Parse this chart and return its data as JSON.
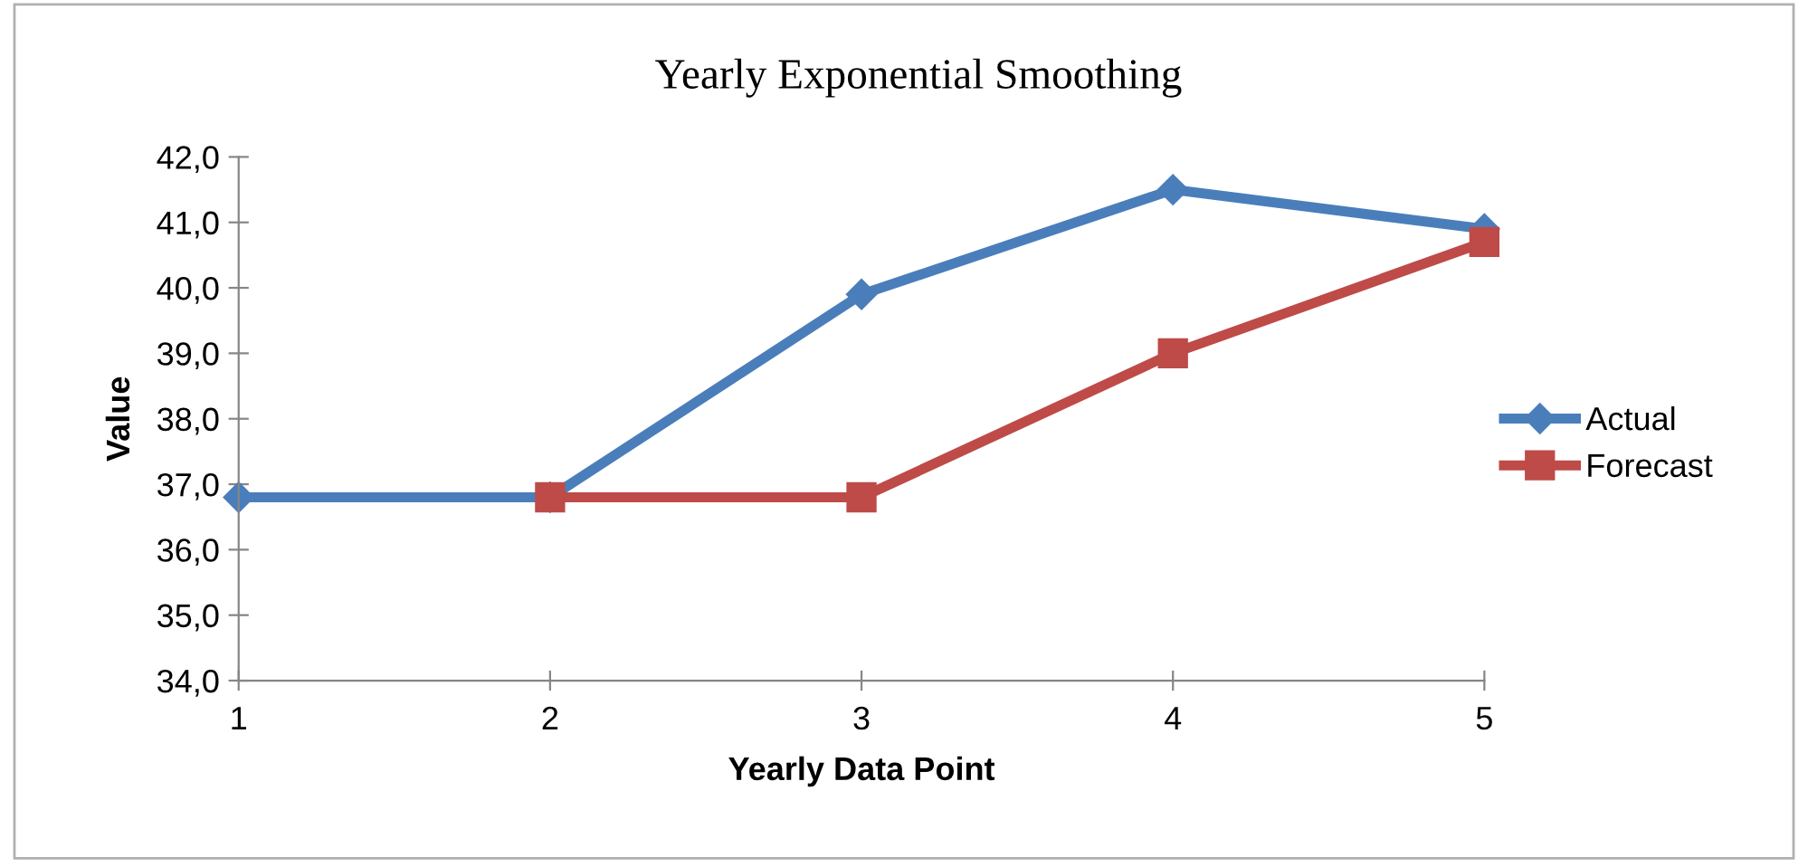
{
  "chart_data": {
    "type": "line",
    "title": "Yearly Exponential Smoothing",
    "xlabel": "Yearly Data Point",
    "ylabel": "Value",
    "categories": [
      "1",
      "2",
      "3",
      "4",
      "5"
    ],
    "series": [
      {
        "name": "Actual",
        "color": "#4a7ebb",
        "marker": "diamond",
        "values": [
          36.8,
          36.8,
          39.9,
          41.5,
          40.9
        ]
      },
      {
        "name": "Forecast",
        "color": "#be4b48",
        "marker": "square",
        "values": [
          null,
          36.8,
          36.8,
          39.0,
          40.7
        ]
      }
    ],
    "ylim": [
      34,
      42
    ],
    "yticks": [
      {
        "value": 34,
        "label": "34,0"
      },
      {
        "value": 35,
        "label": "35,0"
      },
      {
        "value": 36,
        "label": "36,0"
      },
      {
        "value": 37,
        "label": "37,0"
      },
      {
        "value": 38,
        "label": "38,0"
      },
      {
        "value": 39,
        "label": "39,0"
      },
      {
        "value": 40,
        "label": "40,0"
      },
      {
        "value": 41,
        "label": "41,0"
      },
      {
        "value": 42,
        "label": "42,0"
      }
    ],
    "grid": false,
    "legend": "right",
    "line_style": "solid"
  }
}
